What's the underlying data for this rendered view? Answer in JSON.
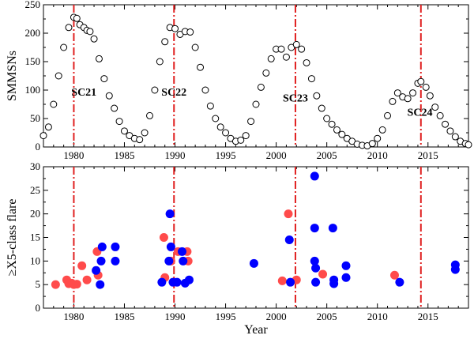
{
  "chart_data": [
    {
      "type": "scatter",
      "ylabel": "SMMSNs",
      "xlim": [
        1977,
        2019
      ],
      "ylim": [
        0,
        250
      ],
      "xticks": [
        1980,
        1985,
        1990,
        1995,
        2000,
        2005,
        2010,
        2015
      ],
      "yticks": [
        0,
        50,
        100,
        150,
        200,
        250
      ],
      "marker": "open-circle",
      "cycle_maxima": [
        1980.0,
        1989.9,
        2001.9,
        2014.3
      ],
      "cycle_labels": [
        {
          "text": "SC21",
          "x": 1981.0,
          "y": 90
        },
        {
          "text": "SC22",
          "x": 1989.9,
          "y": 90
        },
        {
          "text": "SC23",
          "x": 2001.9,
          "y": 80
        },
        {
          "text": "SC24",
          "x": 2014.2,
          "y": 55
        }
      ],
      "series": [
        {
          "points": [
            [
              1977.0,
              20
            ],
            [
              1977.5,
              35
            ],
            [
              1978.0,
              75
            ],
            [
              1978.5,
              125
            ],
            [
              1979.0,
              175
            ],
            [
              1979.5,
              210
            ],
            [
              1980.0,
              228
            ],
            [
              1980.3,
              226
            ],
            [
              1980.6,
              215
            ],
            [
              1981.0,
              210
            ],
            [
              1981.3,
              205
            ],
            [
              1981.6,
              203
            ],
            [
              1982.0,
              190
            ],
            [
              1982.5,
              155
            ],
            [
              1983.0,
              120
            ],
            [
              1983.5,
              90
            ],
            [
              1984.0,
              68
            ],
            [
              1984.5,
              45
            ],
            [
              1985.0,
              28
            ],
            [
              1985.5,
              20
            ],
            [
              1986.0,
              15
            ],
            [
              1986.5,
              13
            ],
            [
              1987.0,
              25
            ],
            [
              1987.5,
              55
            ],
            [
              1988.0,
              100
            ],
            [
              1988.5,
              150
            ],
            [
              1989.0,
              185
            ],
            [
              1989.5,
              210
            ],
            [
              1990.0,
              208
            ],
            [
              1990.5,
              198
            ],
            [
              1991.0,
              203
            ],
            [
              1991.5,
              202
            ],
            [
              1992.0,
              175
            ],
            [
              1992.5,
              140
            ],
            [
              1993.0,
              100
            ],
            [
              1993.5,
              72
            ],
            [
              1994.0,
              50
            ],
            [
              1994.5,
              35
            ],
            [
              1995.0,
              25
            ],
            [
              1995.5,
              15
            ],
            [
              1996.0,
              10
            ],
            [
              1996.5,
              12
            ],
            [
              1997.0,
              20
            ],
            [
              1997.5,
              45
            ],
            [
              1998.0,
              75
            ],
            [
              1998.5,
              105
            ],
            [
              1999.0,
              130
            ],
            [
              1999.5,
              155
            ],
            [
              2000.0,
              172
            ],
            [
              2000.5,
              172
            ],
            [
              2001.0,
              158
            ],
            [
              2001.5,
              175
            ],
            [
              2002.0,
              180
            ],
            [
              2002.5,
              172
            ],
            [
              2003.0,
              148
            ],
            [
              2003.5,
              120
            ],
            [
              2004.0,
              90
            ],
            [
              2004.5,
              68
            ],
            [
              2005.0,
              50
            ],
            [
              2005.5,
              40
            ],
            [
              2006.0,
              30
            ],
            [
              2006.5,
              22
            ],
            [
              2007.0,
              15
            ],
            [
              2007.5,
              10
            ],
            [
              2008.0,
              5
            ],
            [
              2008.5,
              3
            ],
            [
              2009.0,
              2
            ],
            [
              2009.5,
              6
            ],
            [
              2010.0,
              15
            ],
            [
              2010.5,
              30
            ],
            [
              2011.0,
              55
            ],
            [
              2011.5,
              80
            ],
            [
              2012.0,
              95
            ],
            [
              2012.5,
              88
            ],
            [
              2013.0,
              85
            ],
            [
              2013.5,
              95
            ],
            [
              2014.0,
              112
            ],
            [
              2014.3,
              115
            ],
            [
              2014.8,
              105
            ],
            [
              2015.2,
              90
            ],
            [
              2015.7,
              70
            ],
            [
              2016.2,
              55
            ],
            [
              2016.7,
              40
            ],
            [
              2017.2,
              28
            ],
            [
              2017.7,
              18
            ],
            [
              2018.2,
              10
            ],
            [
              2018.7,
              6
            ],
            [
              2019.0,
              4
            ]
          ]
        }
      ]
    },
    {
      "type": "scatter",
      "xlabel": "Year",
      "ylabel": "≥X5-class flare",
      "xlim": [
        1977,
        2019
      ],
      "ylim": [
        0,
        30
      ],
      "xticks": [
        1980,
        1985,
        1990,
        1995,
        2000,
        2005,
        2010,
        2015
      ],
      "yticks": [
        0,
        5,
        10,
        15,
        20,
        25,
        30
      ],
      "cycle_maxima": [
        1980.0,
        1989.9,
        2001.9,
        2014.3
      ],
      "series": [
        {
          "color": "#ff4b4b",
          "points": [
            [
              1978.2,
              5.0
            ],
            [
              1979.3,
              6.0
            ],
            [
              1979.5,
              5.2
            ],
            [
              1979.8,
              5.3
            ],
            [
              1980.0,
              5.0
            ],
            [
              1980.3,
              5.1
            ],
            [
              1980.8,
              9.0
            ],
            [
              1981.3,
              6.0
            ],
            [
              1982.3,
              12.0
            ],
            [
              1982.4,
              7.0
            ],
            [
              1988.9,
              15.0
            ],
            [
              1989.0,
              6.5
            ],
            [
              1989.6,
              10.0
            ],
            [
              1990.3,
              12.0
            ],
            [
              1991.2,
              12.0
            ],
            [
              1991.3,
              10.0
            ],
            [
              2000.6,
              5.8
            ],
            [
              2001.2,
              20.0
            ],
            [
              2002.0,
              6.0
            ],
            [
              2004.6,
              7.2
            ],
            [
              2011.7,
              7.0
            ]
          ]
        },
        {
          "color": "#0000ff",
          "points": [
            [
              1982.2,
              8.0
            ],
            [
              1982.6,
              5.0
            ],
            [
              1982.7,
              10.0
            ],
            [
              1982.8,
              13.0
            ],
            [
              1984.1,
              13.0
            ],
            [
              1984.1,
              10.0
            ],
            [
              1988.7,
              5.5
            ],
            [
              1989.4,
              10.0
            ],
            [
              1989.5,
              20.0
            ],
            [
              1989.6,
              13.0
            ],
            [
              1989.8,
              5.5
            ],
            [
              1990.2,
              5.5
            ],
            [
              1990.7,
              12.0
            ],
            [
              1990.8,
              10.0
            ],
            [
              1991.0,
              5.3
            ],
            [
              1991.4,
              6.0
            ],
            [
              1997.8,
              9.5
            ],
            [
              2001.3,
              14.5
            ],
            [
              2001.4,
              5.5
            ],
            [
              2003.8,
              28.0
            ],
            [
              2003.8,
              17.0
            ],
            [
              2003.8,
              10.0
            ],
            [
              2003.9,
              8.5
            ],
            [
              2003.9,
              5.5
            ],
            [
              2005.6,
              17.0
            ],
            [
              2005.7,
              6.0
            ],
            [
              2005.7,
              5.2
            ],
            [
              2006.9,
              9.0
            ],
            [
              2006.9,
              6.5
            ],
            [
              2012.2,
              5.5
            ],
            [
              2017.7,
              9.2
            ],
            [
              2017.7,
              8.2
            ]
          ]
        }
      ]
    }
  ]
}
